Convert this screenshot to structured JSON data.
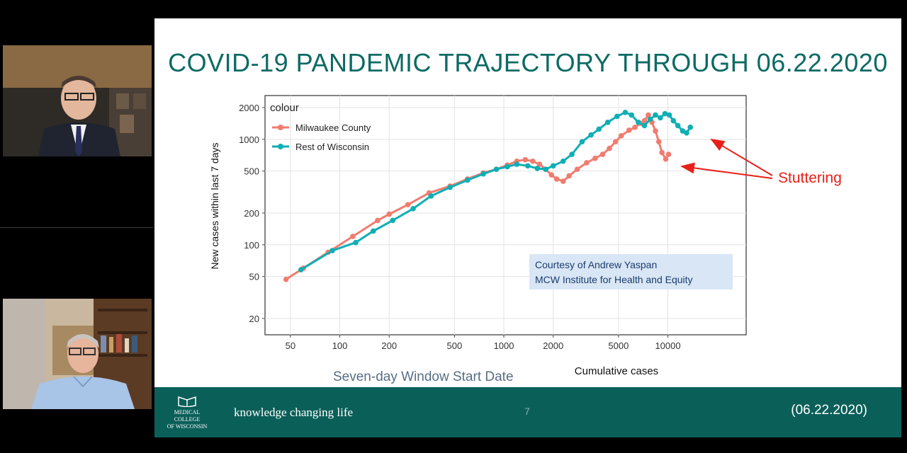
{
  "participants": [
    {
      "name": "presenter-top"
    },
    {
      "name": "presenter-bottom"
    }
  ],
  "slide": {
    "title": "COVID-19 PANDEMIC TRAJECTORY THROUGH 06.22.2020",
    "ghost_text": "Seven-day Window Start Date",
    "credit_line1": "Courtesy of Andrew Yaspan",
    "credit_line2": "MCW Institute for Health and Equity",
    "annotation": "Stuttering",
    "footer": {
      "logo_line1": "MEDICAL",
      "logo_line2": "COLLEGE",
      "logo_line3": "OF WISCONSIN",
      "tagline": "knowledge changing life",
      "page_number": "7",
      "date": "(06.22.2020)"
    }
  },
  "colors": {
    "milwaukee": "#f07c6f",
    "rest_of_wi": "#10aeb5",
    "teal": "#0b5f59",
    "annotation": "#e8201a"
  },
  "chart_data": {
    "type": "line",
    "scale": "log-log",
    "xlabel": "Cumulative cases",
    "ylabel": "New cases within last 7 days",
    "xticks": [
      50,
      100,
      200,
      500,
      1000,
      2000,
      5000,
      10000
    ],
    "yticks": [
      20,
      50,
      100,
      200,
      500,
      1000,
      2000
    ],
    "xlim": [
      35,
      30000
    ],
    "ylim": [
      14,
      2600
    ],
    "grid": true,
    "legend": {
      "title": "colour",
      "position": "top-left"
    },
    "series": [
      {
        "name": "Milwaukee County",
        "color": "#f07c6f",
        "x": [
          47,
          60,
          85,
          120,
          170,
          200,
          260,
          350,
          470,
          600,
          750,
          900,
          1050,
          1200,
          1350,
          1500,
          1650,
          1800,
          1950,
          2100,
          2300,
          2500,
          2800,
          3200,
          3600,
          4000,
          4400,
          4800,
          5200,
          5800,
          6300,
          6800,
          7200,
          7600,
          8000,
          8400,
          8800,
          9200,
          9700,
          10100
        ],
        "y": [
          47,
          60,
          85,
          120,
          170,
          195,
          240,
          310,
          360,
          420,
          480,
          520,
          570,
          620,
          640,
          620,
          580,
          520,
          460,
          420,
          400,
          450,
          520,
          600,
          660,
          720,
          820,
          950,
          1080,
          1220,
          1300,
          1420,
          1500,
          1700,
          1450,
          1200,
          950,
          750,
          650,
          720
        ]
      },
      {
        "name": "Rest of Wisconsin",
        "color": "#10aeb5",
        "x": [
          58,
          90,
          125,
          160,
          210,
          280,
          360,
          470,
          600,
          750,
          900,
          1050,
          1200,
          1400,
          1600,
          1800,
          2000,
          2300,
          2600,
          3000,
          3400,
          3800,
          4300,
          4900,
          5500,
          6000,
          6600,
          7200,
          7800,
          8400,
          9000,
          9600,
          10200,
          10800,
          11500,
          12300,
          13000,
          13700
        ],
        "y": [
          58,
          88,
          105,
          135,
          170,
          220,
          290,
          350,
          410,
          470,
          520,
          550,
          580,
          560,
          530,
          520,
          560,
          620,
          720,
          950,
          1100,
          1250,
          1450,
          1650,
          1800,
          1700,
          1450,
          1350,
          1550,
          1700,
          1600,
          1750,
          1700,
          1500,
          1350,
          1200,
          1150,
          1300
        ]
      }
    ]
  }
}
